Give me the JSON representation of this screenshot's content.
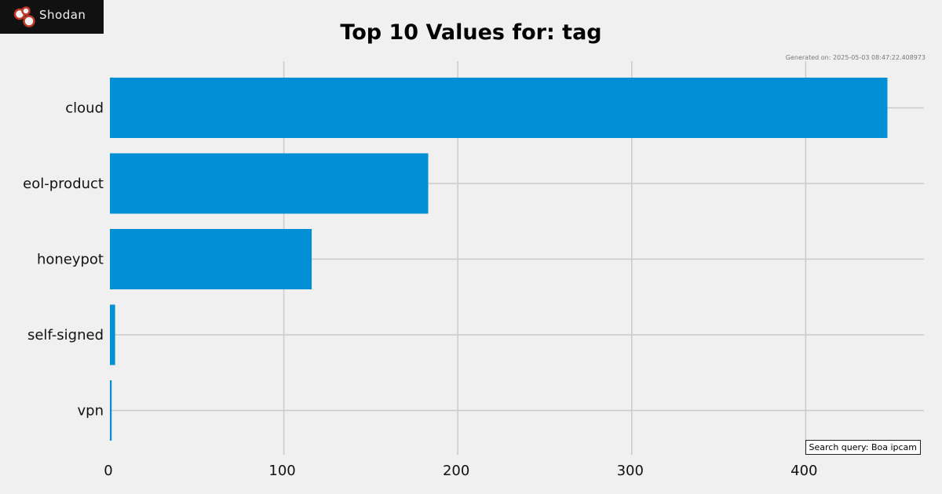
{
  "brand": {
    "name": "Shodan"
  },
  "chart_data": {
    "type": "bar",
    "orientation": "horizontal",
    "title": "Top 10 Values for: tag",
    "categories": [
      "cloud",
      "eol-product",
      "honeypot",
      "self-signed",
      "vpn"
    ],
    "values": [
      447,
      183,
      116,
      3,
      1
    ],
    "xlim": [
      0,
      468
    ],
    "xticks": [
      0,
      100,
      200,
      300,
      400
    ],
    "grid": true,
    "bar_color": "#038fd6",
    "generated": "Generated on: 2025-05-03 08:47:22.408973",
    "annotation": "Search query: Boa ipcam"
  }
}
